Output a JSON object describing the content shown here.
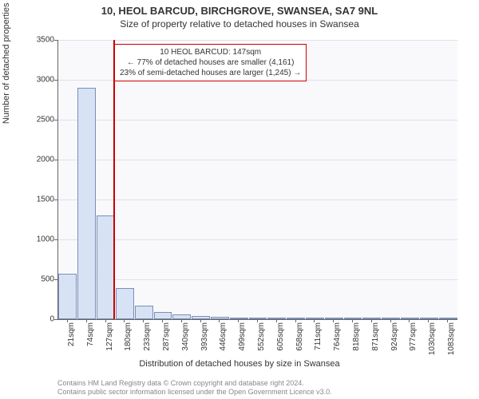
{
  "header": {
    "title": "10, HEOL BARCUD, BIRCHGROVE, SWANSEA, SA7 9NL",
    "subtitle": "Size of property relative to detached houses in Swansea"
  },
  "chart": {
    "type": "histogram",
    "background_color": "#f9f9fc",
    "grid_color": "#e0e0e8",
    "axis_color": "#666666",
    "bar_fill": "#d7e2f4",
    "bar_border": "#7a8fb8",
    "ylabel": "Number of detached properties",
    "xlabel": "Distribution of detached houses by size in Swansea",
    "ylim": [
      0,
      3500
    ],
    "ytick_step": 500,
    "yticks": [
      0,
      500,
      1000,
      1500,
      2000,
      2500,
      3000,
      3500
    ],
    "xticks": [
      "21sqm",
      "74sqm",
      "127sqm",
      "180sqm",
      "233sqm",
      "287sqm",
      "340sqm",
      "393sqm",
      "446sqm",
      "499sqm",
      "552sqm",
      "605sqm",
      "658sqm",
      "711sqm",
      "764sqm",
      "818sqm",
      "871sqm",
      "924sqm",
      "977sqm",
      "1030sqm",
      "1083sqm"
    ],
    "values": [
      570,
      2900,
      1300,
      390,
      170,
      90,
      60,
      40,
      30,
      25,
      20,
      15,
      12,
      10,
      8,
      6,
      5,
      4,
      3,
      2,
      1
    ],
    "ref_line": {
      "color": "#cc0000",
      "position_index": 2.4
    },
    "info_box": {
      "line1": "10 HEOL BARCUD: 147sqm",
      "line2": "← 77% of detached houses are smaller (4,161)",
      "line3": "23% of semi-detached houses are larger (1,245) →",
      "border_color": "#cc0000"
    }
  },
  "footer": {
    "line1": "Contains HM Land Registry data © Crown copyright and database right 2024.",
    "line2": "Contains public sector information licensed under the Open Government Licence v3.0."
  }
}
